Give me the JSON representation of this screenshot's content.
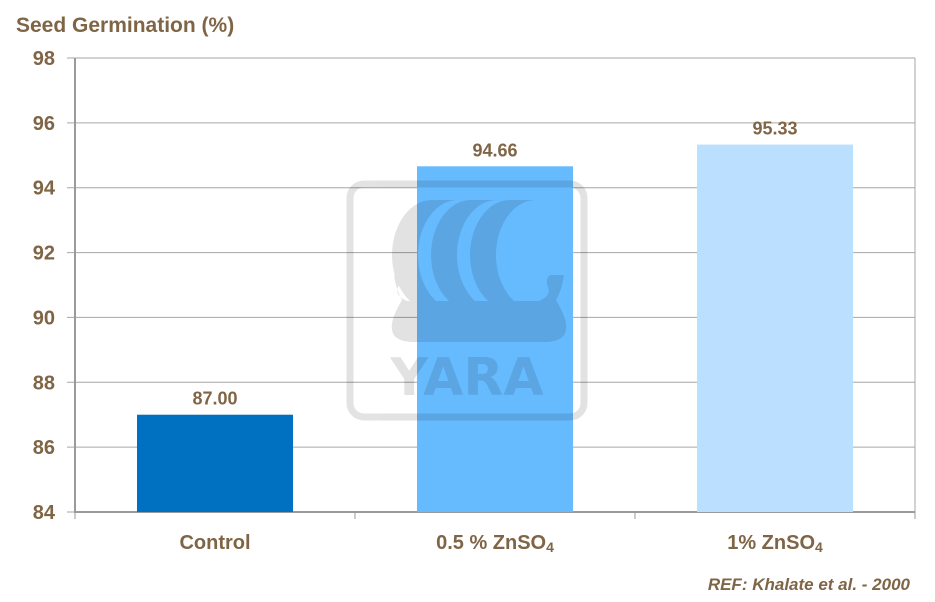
{
  "chart_data": {
    "type": "bar",
    "title": "Seed Germination (%)",
    "categories": [
      "Control",
      "0.5 % ZnSO",
      "1% ZnSO"
    ],
    "category_subscripts": [
      "",
      "4",
      "4"
    ],
    "values": [
      87.0,
      94.66,
      95.33
    ],
    "data_labels": [
      "87.00",
      "94.66",
      "95.33"
    ],
    "bar_colors": [
      "#0070C0",
      "#66BBFF",
      "#BBE0FF"
    ],
    "ylim": [
      84,
      98
    ],
    "yticks": [
      84,
      86,
      88,
      90,
      92,
      94,
      96,
      98
    ],
    "grid": true,
    "xlabel": "",
    "ylabel": "",
    "reference": "REF: Khalate et al. -  2000",
    "watermark": "YARA",
    "text_color": "#7F6545"
  }
}
